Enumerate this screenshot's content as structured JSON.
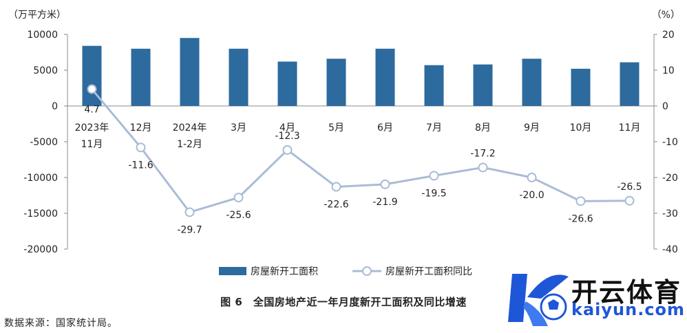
{
  "chart_data": {
    "type": "bar+line",
    "y_left_unit": "（万平方米）",
    "y_right_unit": "（%）",
    "y_left_ticks": [
      10000,
      5000,
      0,
      -5000,
      -10000,
      -15000,
      -20000
    ],
    "y_right_ticks": [
      20,
      10,
      0,
      -10,
      -20,
      -30,
      -40
    ],
    "y_left_range": [
      -20000,
      10000
    ],
    "y_right_range": [
      -40,
      20
    ],
    "categories": [
      "2023年\n11月",
      "12月",
      "2024年\n1-2月",
      "3月",
      "4月",
      "5月",
      "6月",
      "7月",
      "8月",
      "9月",
      "10月",
      "11月"
    ],
    "series": [
      {
        "name": "房屋新开工面积",
        "kind": "bar",
        "axis": "left",
        "color": "#2d6a9e",
        "values": [
          8400,
          8000,
          9500,
          8000,
          6200,
          6600,
          8000,
          5700,
          5800,
          6600,
          5200,
          6100
        ]
      },
      {
        "name": "房屋新开工面积同比",
        "kind": "line",
        "axis": "right",
        "color": "#a9bcd6",
        "values": [
          4.7,
          -11.6,
          -29.7,
          -25.6,
          -12.3,
          -22.6,
          -21.9,
          -19.5,
          -17.2,
          -20.0,
          -26.6,
          -26.5
        ],
        "labels": [
          "4.7",
          "-11.6",
          "-29.7",
          "-25.6",
          "-12.3",
          "-22.6",
          "-21.9",
          "-19.5",
          "-17.2",
          "-20.0",
          "-26.6",
          "-26.5"
        ]
      }
    ],
    "legend_position": "bottom",
    "grid": false
  },
  "caption": "图 6　全国房地产近一年月度新开工面积及同比增速",
  "source": "数据来源：国家统计局。",
  "watermark": {
    "cn": "开云体育",
    "en": "kaiyun.com"
  }
}
